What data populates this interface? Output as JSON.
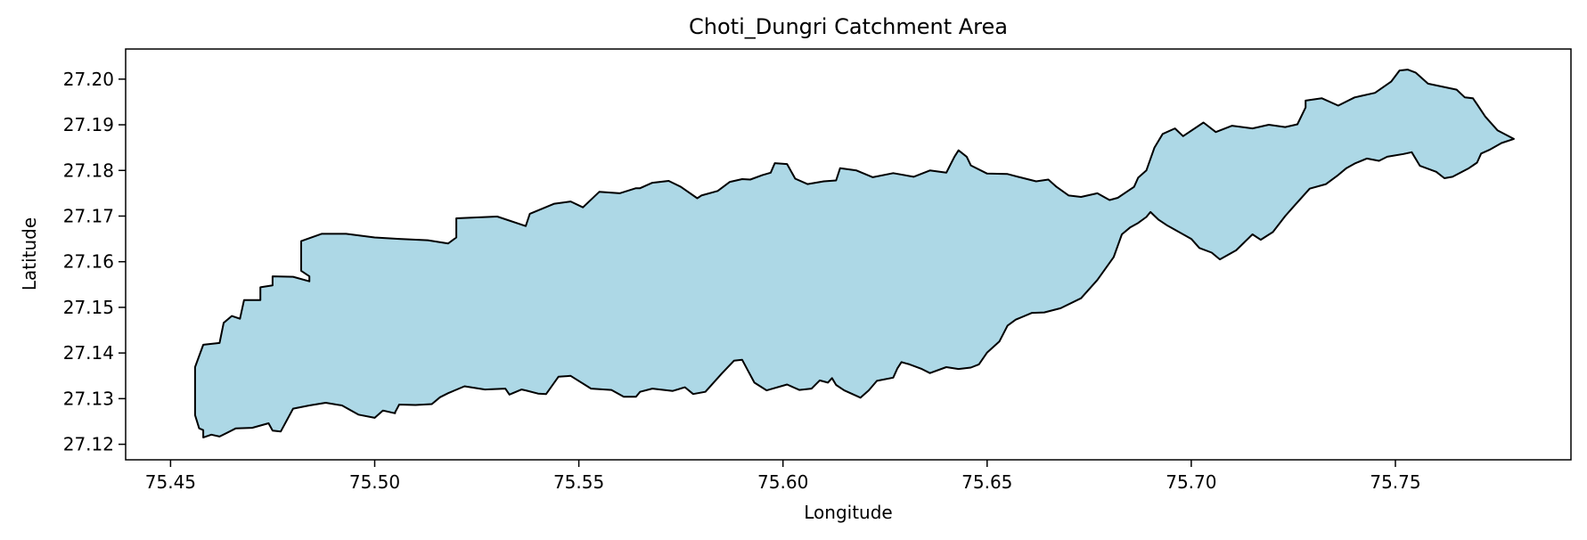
{
  "chart_data": {
    "type": "area",
    "title": "Choti_Dungri Catchment Area",
    "xlabel": "Longitude",
    "ylabel": "Latitude",
    "xlim": [
      75.439,
      75.793
    ],
    "ylim": [
      27.1166,
      27.2066
    ],
    "x_ticks": [
      75.45,
      75.5,
      75.55,
      75.6,
      75.65,
      75.7,
      75.75
    ],
    "x_tick_labels": [
      "75.45",
      "75.50",
      "75.55",
      "75.60",
      "75.65",
      "75.70",
      "75.75"
    ],
    "y_ticks": [
      27.12,
      27.13,
      27.14,
      27.15,
      27.16,
      27.17,
      27.18,
      27.19,
      27.2
    ],
    "y_tick_labels": [
      "27.12",
      "27.13",
      "27.14",
      "27.15",
      "27.16",
      "27.17",
      "27.18",
      "27.19",
      "27.20"
    ],
    "grid": false,
    "fill_color": "#add8e6",
    "edge_color": "#000000",
    "boundary": {
      "lon": [
        75.456,
        75.458,
        75.462,
        75.463,
        75.465,
        75.467,
        75.468,
        75.472,
        75.472,
        75.475,
        75.475,
        75.48,
        75.484,
        75.484,
        75.482,
        75.482,
        75.487,
        75.493,
        75.5,
        75.506,
        75.513,
        75.518,
        75.52,
        75.52,
        75.525,
        75.53,
        75.537,
        75.538,
        75.544,
        75.548,
        75.551,
        75.555,
        75.56,
        75.564,
        75.565,
        75.568,
        75.572,
        75.575,
        75.579,
        75.58,
        75.584,
        75.587,
        75.59,
        75.592,
        75.595,
        75.597,
        75.598,
        75.601,
        75.603,
        75.606,
        75.61,
        75.613,
        75.614,
        75.618,
        75.622,
        75.627,
        75.632,
        75.636,
        75.64,
        75.642,
        75.643,
        75.645,
        75.646,
        75.65,
        75.655,
        75.658,
        75.662,
        75.665,
        75.667,
        75.67,
        75.673,
        75.677,
        75.68,
        75.682,
        75.686,
        75.687,
        75.689,
        75.691,
        75.693,
        75.696,
        75.698,
        75.703,
        75.706,
        75.71,
        75.715,
        75.719,
        75.723,
        75.726,
        75.728,
        75.728,
        75.732,
        75.736,
        75.74,
        75.745,
        75.749,
        75.751,
        75.753,
        75.755,
        75.758,
        75.765,
        75.767,
        75.769,
        75.77,
        75.772,
        75.775,
        75.779,
        75.776,
        75.773,
        75.771,
        75.77,
        75.768,
        75.764,
        75.762,
        75.76,
        75.756,
        75.754,
        75.752,
        75.748,
        75.746,
        75.743,
        75.74,
        75.738,
        75.736,
        75.733,
        75.729,
        75.725,
        75.723,
        75.72,
        75.717,
        75.715,
        75.711,
        75.707,
        75.705,
        75.702,
        75.7,
        75.697,
        75.694,
        75.692,
        75.69,
        75.689,
        75.687,
        75.685,
        75.683,
        75.681,
        75.677,
        75.673,
        75.668,
        75.664,
        75.661,
        75.657,
        75.655,
        75.653,
        75.65,
        75.648,
        75.646,
        75.643,
        75.64,
        75.636,
        75.634,
        75.631,
        75.629,
        75.628,
        75.627,
        75.623,
        75.621,
        75.619,
        75.615,
        75.613,
        75.612,
        75.611,
        75.609,
        75.607,
        75.604,
        75.601,
        75.596,
        75.593,
        75.59,
        75.588,
        75.585,
        75.581,
        75.578,
        75.576,
        75.573,
        75.568,
        75.565,
        75.564,
        75.561,
        75.558,
        75.553,
        75.548,
        75.545,
        75.542,
        75.54,
        75.537,
        75.536,
        75.533,
        75.532,
        75.527,
        75.522,
        75.518,
        75.516,
        75.514,
        75.51,
        75.506,
        75.505,
        75.505,
        75.502,
        75.5,
        75.496,
        75.492,
        75.488,
        75.484,
        75.48,
        75.477,
        75.475,
        75.474,
        75.47,
        75.466,
        75.462,
        75.46,
        75.458,
        75.458,
        75.457,
        75.456
      ],
      "lat": [
        27.1369,
        27.1418,
        27.1422,
        27.1466,
        27.1481,
        27.1475,
        27.1516,
        27.1516,
        27.1544,
        27.1548,
        27.1568,
        27.1567,
        27.1557,
        27.1568,
        27.158,
        27.1645,
        27.1661,
        27.1661,
        27.1653,
        27.165,
        27.1647,
        27.164,
        27.1653,
        27.1695,
        27.1697,
        27.1699,
        27.1678,
        27.1705,
        27.1727,
        27.1732,
        27.1719,
        27.1753,
        27.175,
        27.1761,
        27.1761,
        27.1773,
        27.1777,
        27.1764,
        27.1739,
        27.1745,
        27.1755,
        27.1775,
        27.1781,
        27.178,
        27.179,
        27.1795,
        27.1816,
        27.1814,
        27.1782,
        27.177,
        27.1776,
        27.1778,
        27.1805,
        27.18,
        27.1785,
        27.1794,
        27.1786,
        27.18,
        27.1795,
        27.183,
        27.1844,
        27.183,
        27.1811,
        27.1793,
        27.1792,
        27.1785,
        27.1776,
        27.178,
        27.1764,
        27.1745,
        27.1742,
        27.175,
        27.1735,
        27.174,
        27.1764,
        27.1784,
        27.18,
        27.185,
        27.188,
        27.1892,
        27.1875,
        27.1905,
        27.1884,
        27.1898,
        27.1892,
        27.19,
        27.1895,
        27.1901,
        27.1938,
        27.1953,
        27.1958,
        27.1942,
        27.196,
        27.197,
        27.1995,
        27.2019,
        27.2021,
        27.2014,
        27.199,
        27.1977,
        27.196,
        27.1958,
        27.1945,
        27.1918,
        27.1888,
        27.1869,
        27.186,
        27.1845,
        27.1837,
        27.1817,
        27.1805,
        27.1786,
        27.1783,
        27.1797,
        27.181,
        27.184,
        27.1836,
        27.183,
        27.1821,
        27.1826,
        27.1815,
        27.1805,
        27.179,
        27.177,
        27.176,
        27.172,
        27.17,
        27.1665,
        27.1648,
        27.166,
        27.1625,
        27.1605,
        27.162,
        27.163,
        27.165,
        27.1665,
        27.168,
        27.1692,
        27.1709,
        27.1698,
        27.1685,
        27.1675,
        27.166,
        27.161,
        27.156,
        27.152,
        27.1498,
        27.1489,
        27.1488,
        27.1473,
        27.146,
        27.1425,
        27.1401,
        27.1375,
        27.1368,
        27.1365,
        27.1369,
        27.1356,
        27.1365,
        27.1375,
        27.138,
        27.1366,
        27.1346,
        27.1339,
        27.1318,
        27.1302,
        27.1318,
        27.133,
        27.1345,
        27.1335,
        27.134,
        27.1322,
        27.1319,
        27.1331,
        27.1318,
        27.1335,
        27.1385,
        27.1383,
        27.1355,
        27.1315,
        27.131,
        27.1325,
        27.1317,
        27.1322,
        27.1315,
        27.1304,
        27.1304,
        27.1319,
        27.1322,
        27.135,
        27.1348,
        27.131,
        27.1311,
        27.1318,
        27.132,
        27.1309,
        27.1322,
        27.132,
        27.1327,
        27.1312,
        27.1303,
        27.1288,
        27.1286,
        27.1287,
        27.127,
        27.1268,
        27.1274,
        27.1258,
        27.1265,
        27.1285,
        27.1291,
        27.1285,
        27.1278,
        27.1228,
        27.123,
        27.1246,
        27.1236,
        27.1235,
        27.1217,
        27.1221,
        27.1215,
        27.1231,
        27.1235,
        27.1264,
        27.1253,
        27.125,
        27.1263,
        27.1276,
        27.1293,
        27.1317,
        27.135,
        27.1369
      ]
    }
  }
}
